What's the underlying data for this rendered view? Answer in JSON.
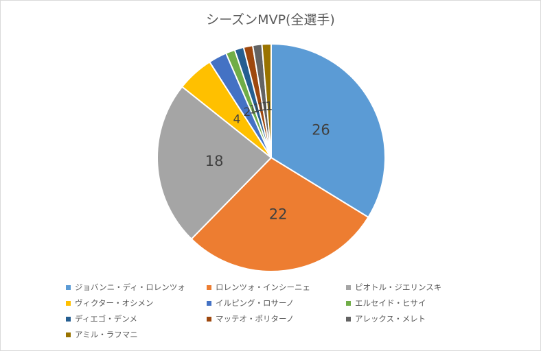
{
  "chart_data": {
    "type": "pie",
    "title": "シーズンMVP(全選手)",
    "categories": [
      "ジョバンニ・ディ・ロレンツォ",
      "ロレンツォ・インシーニェ",
      "ピオトル・ジエリンスキ",
      "ヴィクター・オシメン",
      "イルピング・ロサーノ",
      "エルセイド・ヒサイ",
      "ディエゴ・デンメ",
      "マッテオ・ポリターノ",
      "アレックス・メレト",
      "アミル・ラフマニ"
    ],
    "values": [
      26,
      22,
      18,
      4,
      2,
      1,
      1,
      1,
      1,
      1
    ],
    "data_labels": [
      "26",
      "22",
      "18",
      "4",
      "2",
      "1",
      "1",
      "1",
      "1",
      "1"
    ],
    "colors": [
      "#5b9bd5",
      "#ed7d31",
      "#a5a5a5",
      "#ffc000",
      "#4472c4",
      "#70ad47",
      "#255e91",
      "#9e480e",
      "#636363",
      "#997300"
    ],
    "legend_position": "bottom"
  }
}
